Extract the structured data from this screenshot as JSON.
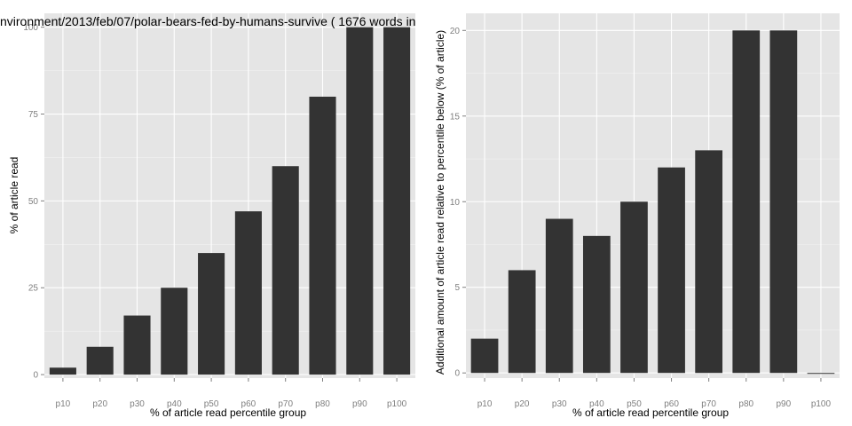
{
  "chart_data": [
    {
      "type": "bar",
      "title": "nvironment/2013/feb/07/polar-bears-fed-by-humans-survive ( 1676 words in",
      "xlabel": "% of article read percentile group",
      "ylabel": "% of article read",
      "categories": [
        "p10",
        "p20",
        "p30",
        "p40",
        "p50",
        "p60",
        "p70",
        "p80",
        "p90",
        "p100"
      ],
      "values": [
        2,
        8,
        17,
        25,
        35,
        47,
        60,
        80,
        100,
        100
      ],
      "ylim": [
        -1,
        104
      ],
      "yticks": [
        0,
        25,
        50,
        75,
        100
      ],
      "ytick_labels": [
        "0",
        "25",
        "50",
        "75",
        "100"
      ],
      "grid": true,
      "bar_color": "#333333",
      "panel_color": "#e5e5e5"
    },
    {
      "type": "bar",
      "title": "",
      "xlabel": "% of article read percentile group",
      "ylabel": "Additional amount of article read relative to percentile below (% of article)",
      "categories": [
        "p10",
        "p20",
        "p30",
        "p40",
        "p50",
        "p60",
        "p70",
        "p80",
        "p90",
        "p100"
      ],
      "values": [
        2,
        6,
        9,
        8,
        10,
        12,
        13,
        20,
        20,
        0
      ],
      "ylim": [
        -0.3,
        21
      ],
      "yticks": [
        0,
        5,
        10,
        15,
        20
      ],
      "ytick_labels": [
        "0",
        "5",
        "10",
        "15",
        "20"
      ],
      "grid": true,
      "bar_color": "#333333",
      "panel_color": "#e5e5e5"
    }
  ]
}
